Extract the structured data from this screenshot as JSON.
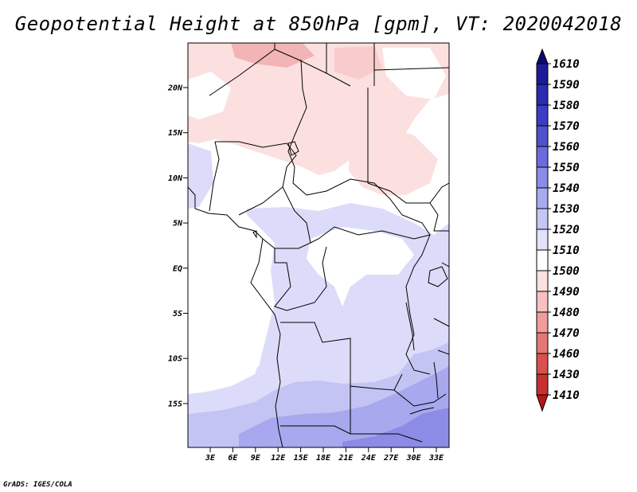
{
  "title": "Geopotential Height at 850hPa [gpm], VT: 2020042018",
  "footer": "GrADS: IGES/COLA",
  "map": {
    "lat_labels": [
      "20N",
      "15N",
      "10N",
      "5N",
      "EQ",
      "5S",
      "10S",
      "15S"
    ],
    "lon_labels": [
      "3E",
      "6E",
      "9E",
      "12E",
      "15E",
      "18E",
      "21E",
      "24E",
      "27E",
      "30E",
      "33E"
    ]
  },
  "colorbar": {
    "levels": [
      "1610",
      "1590",
      "1580",
      "1570",
      "1560",
      "1550",
      "1540",
      "1530",
      "1520",
      "1510",
      "1500",
      "1490",
      "1480",
      "1470",
      "1460",
      "1430",
      "1410"
    ],
    "colors": [
      "#0c0a6e",
      "#1c1a9a",
      "#2a2ab2",
      "#3a3ec4",
      "#5052cc",
      "#6a6cdc",
      "#8a8ce8",
      "#a8aaf0",
      "#c4c6f6",
      "#e2e2fa",
      "#ffffff",
      "#fde0e0",
      "#f8c0c0",
      "#f09c9c",
      "#e47878",
      "#d85050",
      "#c83030",
      "#b41818"
    ]
  },
  "fields": {
    "pink_light": "#fce0e0",
    "pink_mid": "#f6c6c6",
    "pink_dark": "#eca0a0",
    "blue_1": "#dcdcfa",
    "blue_2": "#c4c4f4",
    "blue_3": "#a8a8ee",
    "blue_4": "#8c8ce6",
    "white": "#ffffff"
  }
}
